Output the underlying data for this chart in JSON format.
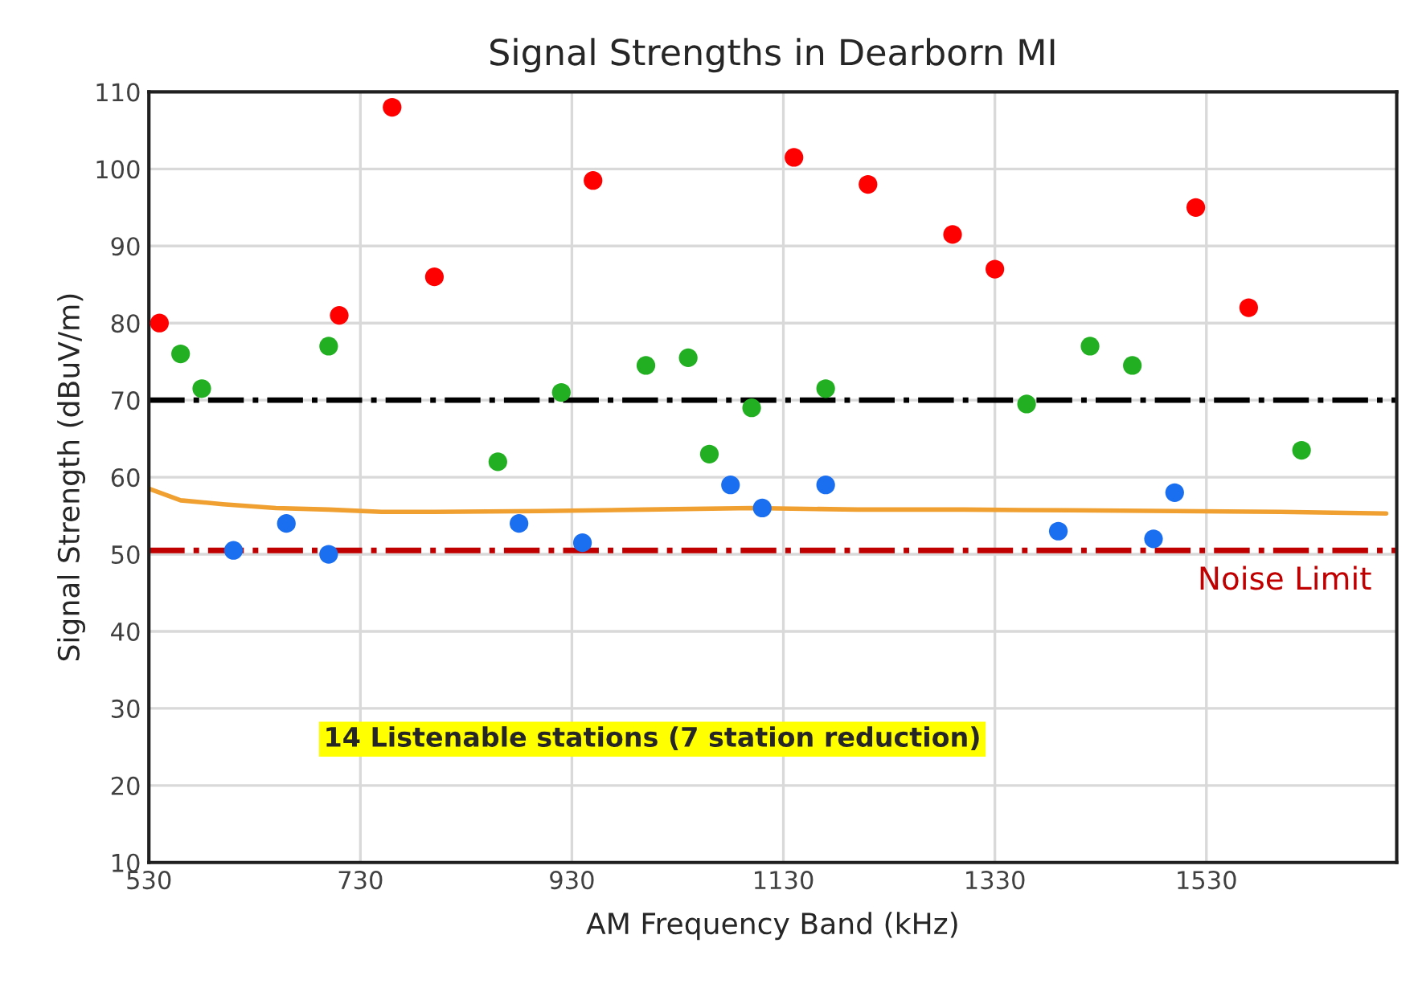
{
  "chart_data": {
    "type": "scatter",
    "title": "Signal Strengths in Dearborn MI",
    "xlabel": "AM Frequency Band (kHz)",
    "ylabel": "Signal Strength (dBuV/m)",
    "series": [
      {
        "marker": "circle",
        "color": "#ff0000",
        "x": [
          540,
          710,
          760,
          800,
          950,
          1140,
          1210,
          1290,
          1330,
          1520,
          1570
        ],
        "values": [
          80,
          81,
          108,
          86,
          98.5,
          101.5,
          98,
          91.5,
          87,
          95,
          82
        ]
      },
      {
        "marker": "circle",
        "color": "#22b022",
        "x": [
          560,
          580,
          700,
          860,
          920,
          1000,
          1040,
          1060,
          1100,
          1170,
          1360,
          1420,
          1460,
          1620
        ],
        "values": [
          76,
          71.5,
          77,
          62,
          71,
          74.5,
          75.5,
          63,
          69,
          71.5,
          69.5,
          77,
          74.5,
          63.5
        ]
      },
      {
        "marker": "circle",
        "color": "#1a6ef0",
        "x": [
          610,
          660,
          700,
          880,
          940,
          1080,
          1110,
          1170,
          1390,
          1480,
          1500
        ],
        "values": [
          50.5,
          54,
          50,
          54,
          51.5,
          59,
          56,
          59,
          53,
          52,
          58
        ]
      },
      {
        "type": "line",
        "marker": "none",
        "color": "#f0a030",
        "x": [
          530,
          560,
          600,
          650,
          700,
          750,
          800,
          900,
          1000,
          1100,
          1200,
          1300,
          1400,
          1500,
          1600,
          1700
        ],
        "values": [
          58.5,
          57,
          56.5,
          56,
          55.8,
          55.5,
          55.5,
          55.6,
          55.8,
          56,
          55.8,
          55.8,
          55.7,
          55.6,
          55.5,
          55.3
        ]
      }
    ],
    "ref_lines": [
      {
        "axis": "y",
        "value": 70,
        "label": null,
        "color": "#000000",
        "line_style": "dashdot"
      },
      {
        "axis": "y",
        "value": 50.5,
        "label": "Noise Limit",
        "color": "#c00000",
        "line_style": "dashdot"
      }
    ],
    "annotations": [
      "14 Listenable stations (7 station reduction)"
    ],
    "xlim": [
      530,
      1710
    ],
    "xticks": [
      530,
      730,
      930,
      1130,
      1330,
      1530
    ],
    "ylim": [
      10,
      110
    ],
    "yticks": [
      10,
      20,
      30,
      40,
      50,
      60,
      70,
      80,
      90,
      100,
      110
    ],
    "grid": true,
    "legend": false
  }
}
